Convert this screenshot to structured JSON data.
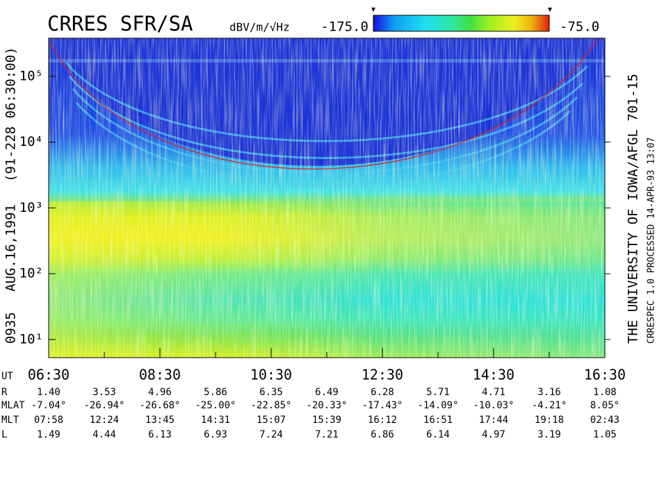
{
  "chart_data": {
    "type": "spectrogram",
    "title": "CRRES SFR/SA",
    "colorbar": {
      "label": "dBV/m/√Hz",
      "lim": [
        -175,
        -75
      ],
      "ticks": [
        {
          "value": -175,
          "label": "-175.0"
        },
        {
          "value": -75,
          "label": "-75.0"
        }
      ]
    },
    "ylim": [
      5.3,
      380000
    ],
    "log_y": true,
    "yticks": [
      {
        "value": 10,
        "label": "10¹"
      },
      {
        "value": 100,
        "label": "10²"
      },
      {
        "value": 1000,
        "label": "10³"
      },
      {
        "value": 10000,
        "label": "10⁴"
      },
      {
        "value": 100000,
        "label": "10⁵"
      }
    ],
    "x_label": "UT",
    "categories": [
      "06:30",
      null,
      "08:30",
      null,
      "10:30",
      null,
      "12:30",
      null,
      "14:30",
      null,
      "16:30"
    ],
    "table": [
      {
        "label": "R",
        "values": [
          "1.40",
          "3.53",
          "4.96",
          "5.86",
          "6.35",
          "6.49",
          "6.28",
          "5.71",
          "4.71",
          "3.16",
          "1.08"
        ]
      },
      {
        "label": "MLAT",
        "values": [
          "-7.04°",
          "-26.94°",
          "-26.68°",
          "-25.00°",
          "-22.85°",
          "-20.33°",
          "-17.43°",
          "-14.09°",
          "-10.03°",
          "-4.21°",
          "8.05°"
        ]
      },
      {
        "label": "MLT",
        "values": [
          "07:58",
          "12:24",
          "13:45",
          "14:31",
          "15:07",
          "15:39",
          "16:12",
          "16:51",
          "17:44",
          "19:18",
          "02:43"
        ]
      },
      {
        "label": "L",
        "values": [
          "1.49",
          "4.44",
          "6.13",
          "6.93",
          "7.24",
          "7.21",
          "6.86",
          "6.14",
          "4.97",
          "3.19",
          "1.05"
        ]
      }
    ],
    "left_annotations": [
      "0935",
      "AUG.16,1991",
      "(91-228 06:30:00)"
    ],
    "right_annotations": [
      "THE UNIVERSITY OF IOWA/AFGL 701-15",
      "CRRESPEC 1.0  PROCESSED 14-APR-93 13:07"
    ]
  }
}
